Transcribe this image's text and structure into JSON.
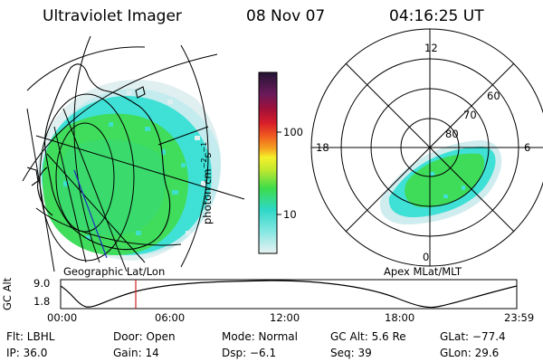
{
  "header": {
    "title": "Ultraviolet Imager",
    "date": "08 Nov 07",
    "time": "04:16:25 UT"
  },
  "left_panel": {
    "label": "Geographic Lat/Lon"
  },
  "right_panel": {
    "label": "Apex MLat/MLT",
    "mlt_labels": {
      "top": "12",
      "left": "18",
      "right": "6",
      "bottom": "0"
    },
    "mlat_labels": [
      "60",
      "70",
      "80"
    ]
  },
  "colorbar": {
    "unit_label": "photon cm^-2 s^-1",
    "ticks": [
      "100",
      "10"
    ]
  },
  "altitude_plot": {
    "ylabel": "GC Alt",
    "yticks": [
      "9.0",
      "1.8"
    ],
    "xticks": [
      "00:00",
      "06:00",
      "12:00",
      "18:00",
      "23:59"
    ],
    "marker_time": "04:16"
  },
  "info": {
    "filter": "Flt: LBHL",
    "door": "Door: Open",
    "mode": "Mode: Normal",
    "gc_alt": "GC Alt: 5.6 Re",
    "glat": "GLat: −77.4",
    "ip": "IP: 36.0",
    "gain": "Gain: 14",
    "dsp": "Dsp:  −6.1",
    "seq": "Seq: 39",
    "glon": "GLon:  29.6"
  },
  "colors": {
    "cyan": "#3fe0d6",
    "green": "#3fdc5a",
    "light_cyan": "#bfeff0",
    "pale": "#e2f1f2",
    "marker": "#cc2222"
  }
}
